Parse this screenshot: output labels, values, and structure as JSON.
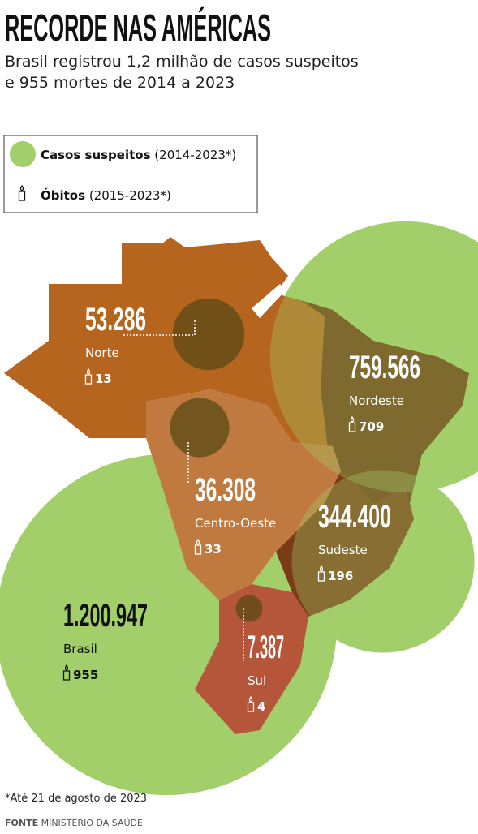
{
  "header": {
    "title": "RECORDE NAS AMÉRICAS",
    "subtitle_lines": [
      "Brasil registrou 1,2 milhão de casos suspeitos",
      "e 955 mortes de 2014 a 2023"
    ]
  },
  "legend": [
    {
      "label": "Casos suspeitos",
      "period": "(2014-2023*)"
    },
    {
      "label": "Óbitos",
      "period": "(2015-2023*)"
    }
  ],
  "regions": [
    {
      "name": "Norte",
      "cases": 53286,
      "cases_label": "53.286",
      "deaths": 13
    },
    {
      "name": "Nordeste",
      "cases": 759566,
      "cases_label": "759.566",
      "deaths": 709
    },
    {
      "name": "Centro-Oeste",
      "cases": 36308,
      "cases_label": "36.308",
      "deaths": 33
    },
    {
      "name": "Sudeste",
      "cases": 344400,
      "cases_label": "344.400",
      "deaths": 196
    },
    {
      "name": "Sul",
      "cases": 7387,
      "cases_label": "7.387",
      "deaths": 4
    },
    {
      "name": "Brasil",
      "cases": 1200947,
      "cases_label": "1.200.947",
      "deaths": 955
    }
  ],
  "note": "*Até 21 de agosto de 2023",
  "source": {
    "label": "FONTE",
    "text": "MINISTÉRIO DA SAÚDE"
  }
}
